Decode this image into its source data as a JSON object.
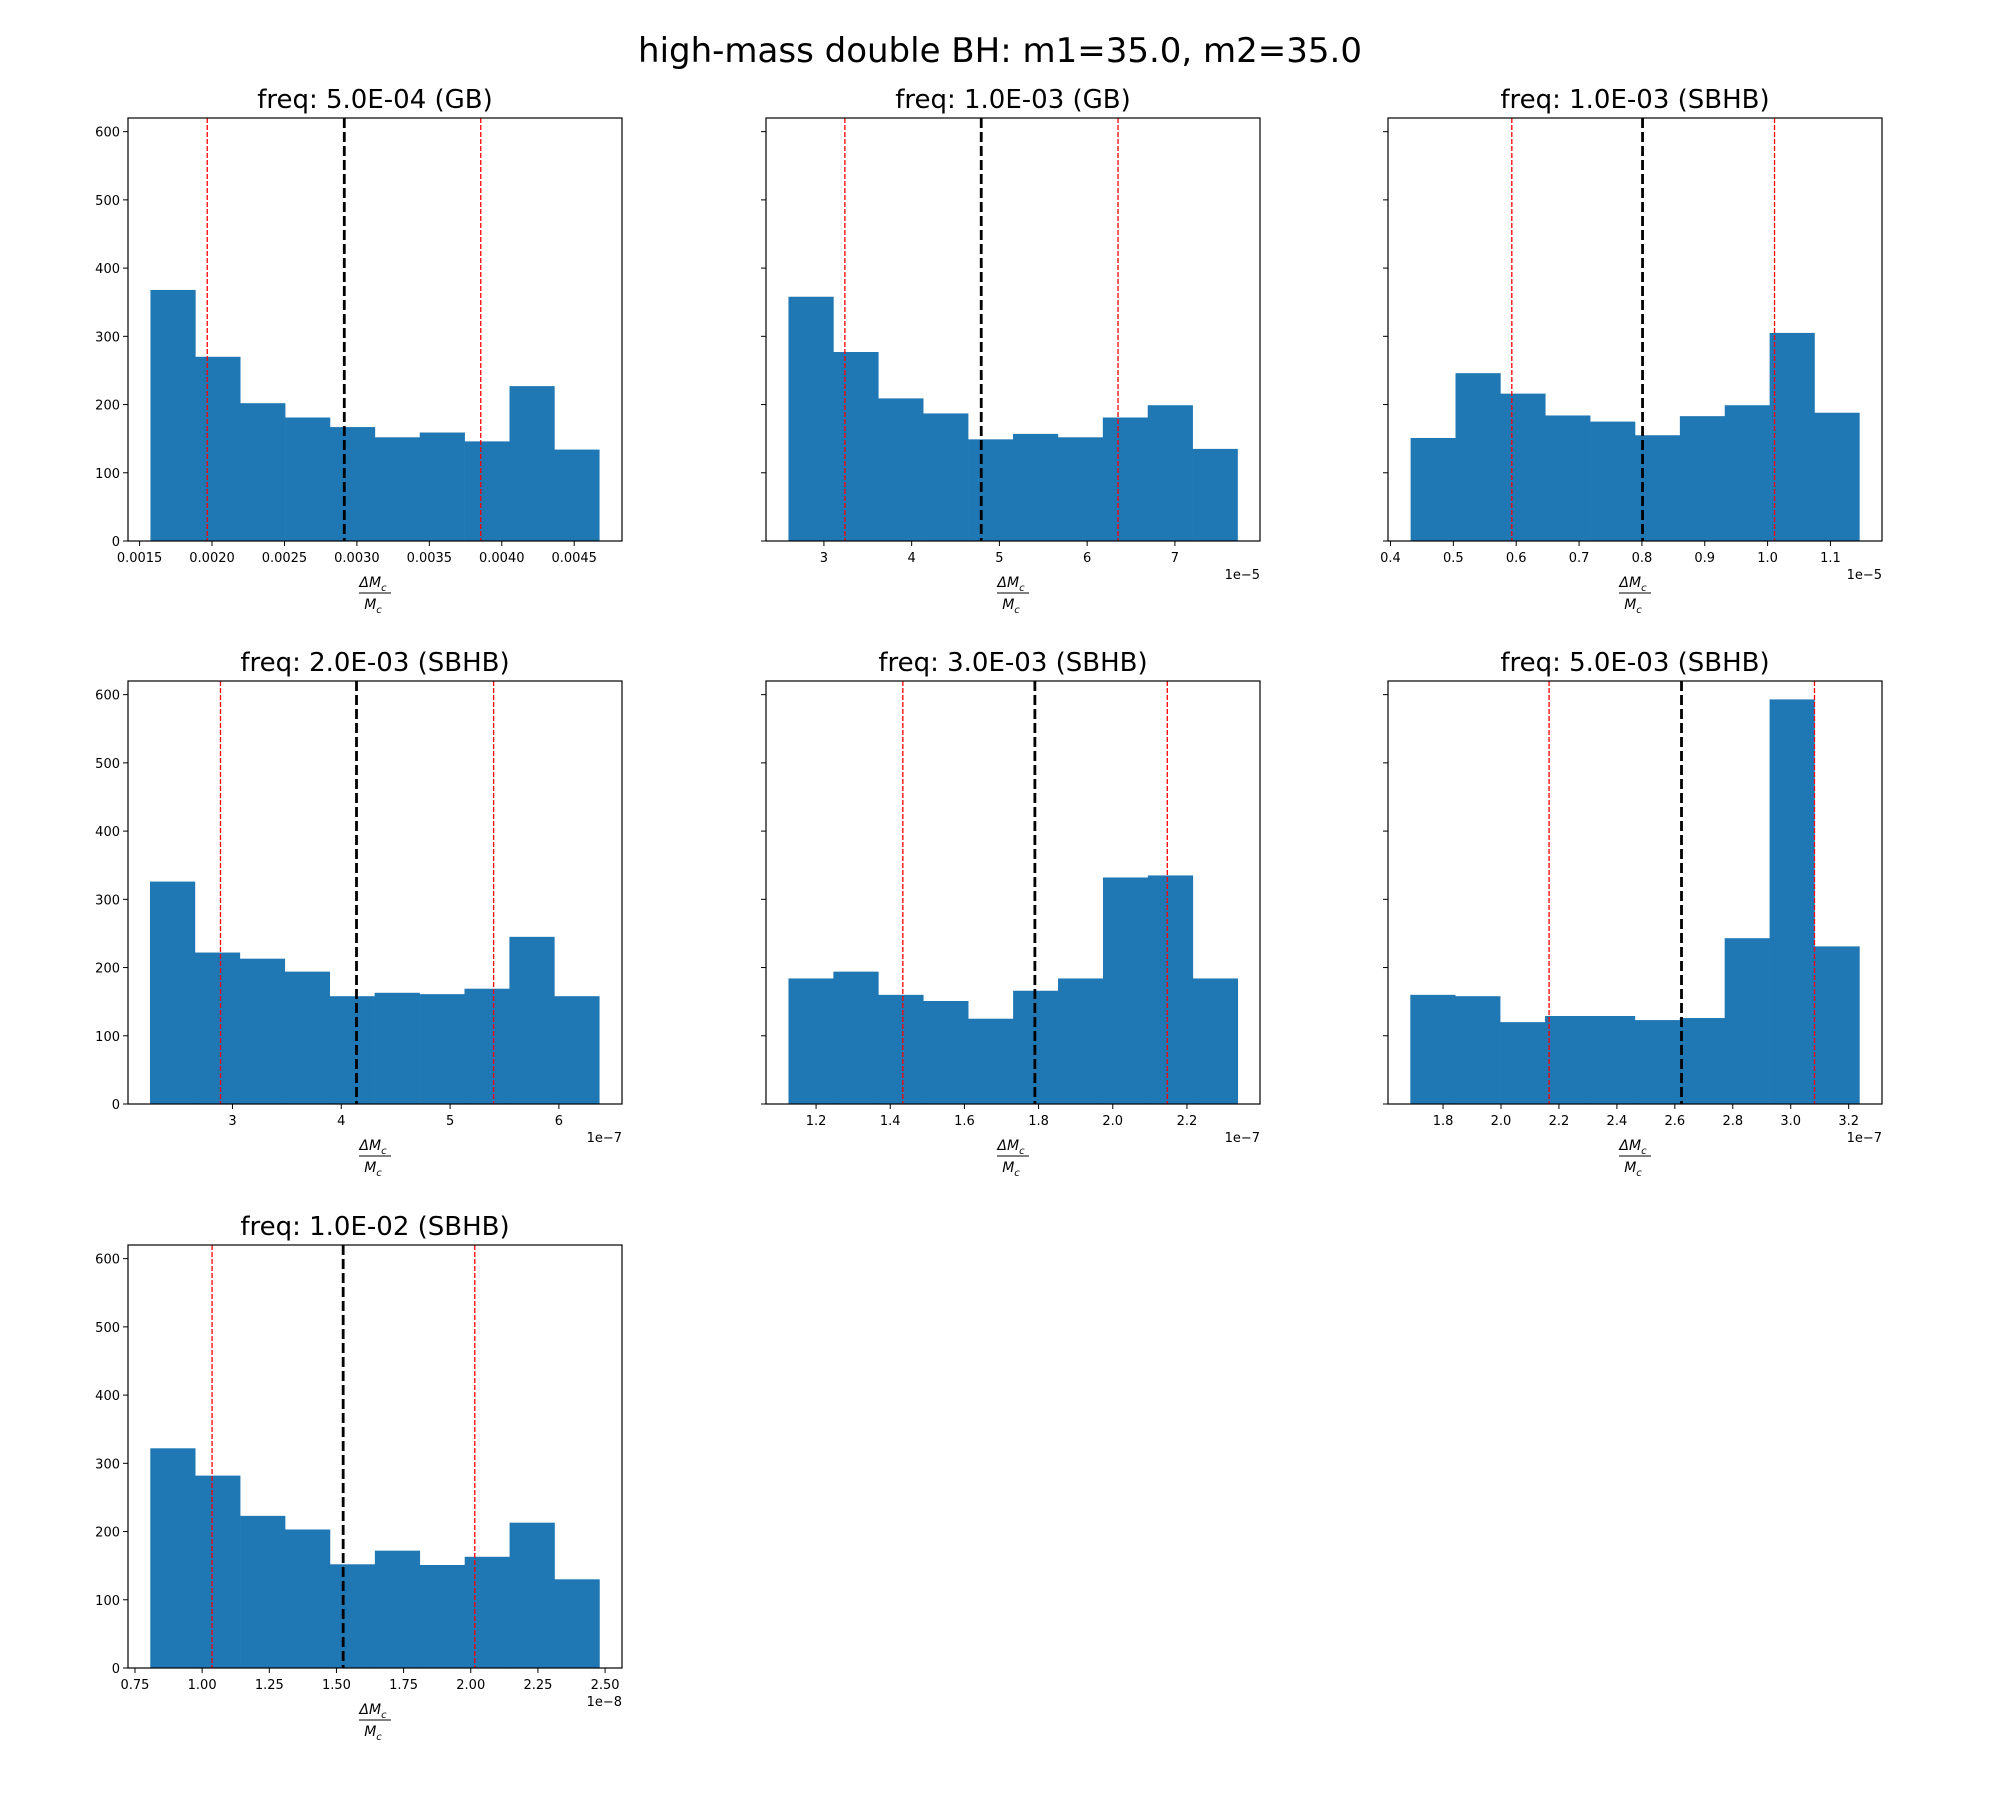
{
  "chart_data": {
    "type": "bar",
    "subtype": "histogram-grid",
    "suptitle": "high-mass double BH: m1=35.0, m2=35.0",
    "ylim": [
      0,
      620
    ],
    "yticks": [
      0,
      100,
      200,
      300,
      400,
      500,
      600
    ],
    "ytick_labels": [
      "0",
      "100",
      "200",
      "300",
      "400",
      "500",
      "600"
    ],
    "xlabel": {
      "numerator": "ΔM",
      "denominator": "M",
      "subscript": "c"
    },
    "colors": {
      "bars": "#1f77b4",
      "median_line": "#000000",
      "interval_lines": "#ff0000"
    },
    "panels": [
      {
        "title": "freq: 5.0E-04 (GB)",
        "offset": "",
        "bin_range": [
          0.001575,
          0.004673
        ],
        "counts": [
          368,
          270,
          202,
          181,
          167,
          152,
          159,
          146,
          227,
          134
        ],
        "median": 0.002913,
        "interval": [
          0.001967,
          0.003855
        ],
        "xlim": [
          0.00142,
          0.00483
        ],
        "xticks": [
          0.0015,
          0.002,
          0.0025,
          0.003,
          0.0035,
          0.004,
          0.0045
        ],
        "xtick_labels": [
          "0.0015",
          "0.0020",
          "0.0025",
          "0.0030",
          "0.0035",
          "0.0040",
          "0.0045"
        ]
      },
      {
        "title": "freq: 1.0E-03 (GB)",
        "offset": "1e−5",
        "bin_range": [
          2.596,
          7.714
        ],
        "counts": [
          358,
          277,
          209,
          187,
          149,
          157,
          152,
          181,
          199,
          135
        ],
        "median": 4.793,
        "interval": [
          3.239,
          6.352
        ],
        "xlim": [
          2.34,
          7.97
        ],
        "xticks": [
          3,
          4,
          5,
          6,
          7
        ],
        "xtick_labels": [
          "3",
          "4",
          "5",
          "6",
          "7"
        ]
      },
      {
        "title": "freq: 1.0E-03 (SBHB)",
        "offset": "1e−5",
        "bin_range": [
          0.432,
          1.146
        ],
        "counts": [
          151,
          246,
          216,
          184,
          175,
          155,
          183,
          199,
          305,
          188
        ],
        "median": 0.801,
        "interval": [
          0.593,
          1.011
        ],
        "xlim": [
          0.396,
          1.182
        ],
        "xticks": [
          0.4,
          0.5,
          0.6,
          0.7,
          0.8,
          0.9,
          1.0,
          1.1
        ],
        "xtick_labels": [
          "0.4",
          "0.5",
          "0.6",
          "0.7",
          "0.8",
          "0.9",
          "1.0",
          "1.1"
        ]
      },
      {
        "title": "freq: 2.0E-03 (SBHB)",
        "offset": "1e−7",
        "bin_range": [
          2.242,
          6.371
        ],
        "counts": [
          326,
          222,
          213,
          194,
          158,
          163,
          161,
          169,
          245,
          158
        ],
        "median": 4.14,
        "interval": [
          2.89,
          5.4
        ],
        "xlim": [
          2.04,
          6.58
        ],
        "xticks": [
          3,
          4,
          5,
          6
        ],
        "xtick_labels": [
          "3",
          "4",
          "5",
          "6"
        ]
      },
      {
        "title": "freq: 3.0E-03 (SBHB)",
        "offset": "1e−7",
        "bin_range": [
          1.1256,
          2.337
        ],
        "counts": [
          184,
          194,
          160,
          151,
          125,
          166,
          184,
          332,
          335,
          184
        ],
        "median": 1.79,
        "interval": [
          1.434,
          2.147
        ],
        "xlim": [
          1.065,
          2.397
        ],
        "xticks": [
          1.2,
          1.4,
          1.6,
          1.8,
          2.0,
          2.2
        ],
        "xtick_labels": [
          "1.2",
          "1.4",
          "1.6",
          "1.8",
          "2.0",
          "2.2"
        ]
      },
      {
        "title": "freq: 5.0E-03 (SBHB)",
        "offset": "1e−7",
        "bin_range": [
          1.687,
          3.237
        ],
        "counts": [
          160,
          158,
          120,
          129,
          129,
          123,
          126,
          243,
          593,
          231
        ],
        "median": 2.623,
        "interval": [
          2.166,
          3.082
        ],
        "xlim": [
          1.61,
          3.315
        ],
        "xticks": [
          1.8,
          2.0,
          2.2,
          2.4,
          2.6,
          2.8,
          3.0,
          3.2
        ],
        "xtick_labels": [
          "1.8",
          "2.0",
          "2.2",
          "2.4",
          "2.6",
          "2.8",
          "3.0",
          "3.2"
        ]
      },
      {
        "title": "freq: 1.0E-02 (SBHB)",
        "offset": "1e−8",
        "bin_range": [
          0.807,
          2.479
        ],
        "counts": [
          322,
          282,
          223,
          203,
          152,
          172,
          151,
          163,
          213,
          130
        ],
        "median": 1.525,
        "interval": [
          1.037,
          2.015
        ],
        "xlim": [
          0.724,
          2.563
        ],
        "xticks": [
          0.75,
          1.0,
          1.25,
          1.5,
          1.75,
          2.0,
          2.25,
          2.5
        ],
        "xtick_labels": [
          "0.75",
          "1.00",
          "1.25",
          "1.50",
          "1.75",
          "2.00",
          "2.25",
          "2.50"
        ]
      }
    ]
  }
}
